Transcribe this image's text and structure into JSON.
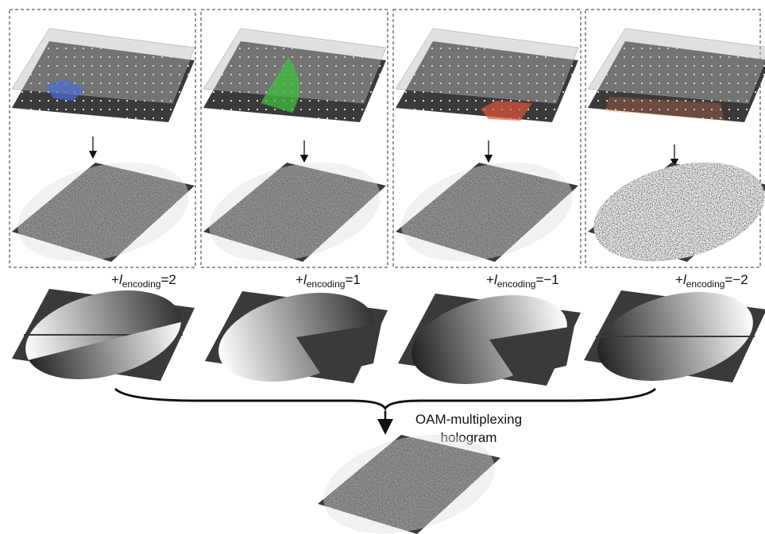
{
  "panels": [
    {
      "sign": "+",
      "symbol": "l",
      "subscript": "encoding",
      "value": "=2"
    },
    {
      "sign": "+",
      "symbol": "l",
      "subscript": "encoding",
      "value": "=1"
    },
    {
      "sign": "+",
      "symbol": "l",
      "subscript": "encoding",
      "value": "=−1"
    },
    {
      "sign": "+",
      "symbol": "l",
      "subscript": "encoding",
      "value": "=−2"
    }
  ],
  "caption": [
    "OAM-multiplexing",
    "hologram"
  ]
}
